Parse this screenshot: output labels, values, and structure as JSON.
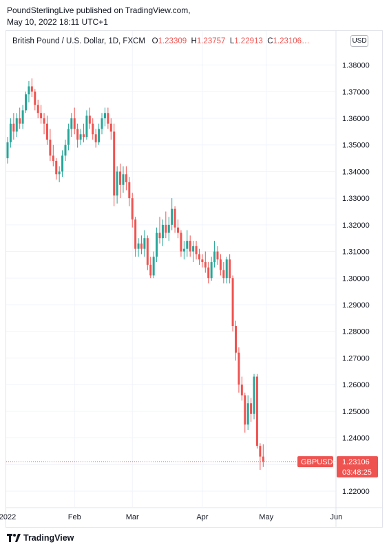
{
  "publisher_line": "PoundSterlingLive published on TradingView.com,",
  "date_line": "May 10, 2022 18:11 UTC+1",
  "legend": {
    "symbol": "British Pound / U.S. Dollar, 1D, FXCM",
    "o_label": "O",
    "o_value": "1.23309",
    "h_label": "H",
    "h_value": "1.23757",
    "l_label": "L",
    "l_value": "1.22913",
    "c_label": "C",
    "c_value": "1.23106…"
  },
  "currency_button": "USD",
  "price_tag": {
    "symbol": "GBPUSD",
    "price": "1.23106",
    "countdown": "03:48:25"
  },
  "footer_brand": "TradingView",
  "colors": {
    "up": "#26a69a",
    "down": "#ef5350",
    "grid": "#f0f3fa",
    "border": "#e0e3eb"
  },
  "chart_data": {
    "type": "candlestick",
    "y_tick_labels": [
      "1.38000",
      "1.37000",
      "1.36000",
      "1.35000",
      "1.34000",
      "1.33000",
      "1.32000",
      "1.31000",
      "1.30000",
      "1.29000",
      "1.28000",
      "1.27000",
      "1.26000",
      "1.25000",
      "1.24000",
      "1.23000",
      "1.22000"
    ],
    "x_tick_labels": [
      "2022",
      "Feb",
      "Mar",
      "Apr",
      "May",
      "Jun"
    ],
    "x_tick_day_index": [
      0,
      22,
      41,
      64,
      85,
      108
    ],
    "ylim": [
      1.2138,
      1.3928
    ],
    "last_price": 1.23106,
    "candles": [
      [
        1.345,
        1.353,
        1.343,
        1.351
      ],
      [
        1.351,
        1.36,
        1.349,
        1.358
      ],
      [
        1.358,
        1.362,
        1.352,
        1.355
      ],
      [
        1.355,
        1.362,
        1.353,
        1.36
      ],
      [
        1.36,
        1.364,
        1.356,
        1.358
      ],
      [
        1.358,
        1.365,
        1.356,
        1.363
      ],
      [
        1.363,
        1.37,
        1.362,
        1.369
      ],
      [
        1.369,
        1.374,
        1.366,
        1.372
      ],
      [
        1.372,
        1.375,
        1.368,
        1.37
      ],
      [
        1.37,
        1.371,
        1.363,
        1.365
      ],
      [
        1.365,
        1.367,
        1.36,
        1.362
      ],
      [
        1.362,
        1.365,
        1.358,
        1.36
      ],
      [
        1.36,
        1.362,
        1.354,
        1.358
      ],
      [
        1.358,
        1.361,
        1.35,
        1.352
      ],
      [
        1.352,
        1.356,
        1.344,
        1.346
      ],
      [
        1.346,
        1.35,
        1.342,
        1.344
      ],
      [
        1.344,
        1.345,
        1.337,
        1.339
      ],
      [
        1.339,
        1.342,
        1.336,
        1.34
      ],
      [
        1.34,
        1.348,
        1.338,
        1.346
      ],
      [
        1.346,
        1.352,
        1.344,
        1.35
      ],
      [
        1.35,
        1.358,
        1.348,
        1.356
      ],
      [
        1.356,
        1.362,
        1.353,
        1.36
      ],
      [
        1.36,
        1.364,
        1.354,
        1.356
      ],
      [
        1.356,
        1.358,
        1.349,
        1.352
      ],
      [
        1.352,
        1.356,
        1.35,
        1.354
      ],
      [
        1.354,
        1.358,
        1.351,
        1.353
      ],
      [
        1.353,
        1.363,
        1.352,
        1.361
      ],
      [
        1.361,
        1.364,
        1.356,
        1.358
      ],
      [
        1.358,
        1.36,
        1.352,
        1.354
      ],
      [
        1.354,
        1.356,
        1.349,
        1.351
      ],
      [
        1.351,
        1.358,
        1.35,
        1.356
      ],
      [
        1.356,
        1.362,
        1.354,
        1.36
      ],
      [
        1.36,
        1.364,
        1.357,
        1.362
      ],
      [
        1.362,
        1.364,
        1.356,
        1.358
      ],
      [
        1.358,
        1.36,
        1.352,
        1.355
      ],
      [
        1.355,
        1.358,
        1.327,
        1.331
      ],
      [
        1.331,
        1.342,
        1.328,
        1.34
      ],
      [
        1.34,
        1.343,
        1.33,
        1.335
      ],
      [
        1.335,
        1.342,
        1.332,
        1.339
      ],
      [
        1.339,
        1.342,
        1.333,
        1.336
      ],
      [
        1.336,
        1.338,
        1.327,
        1.33
      ],
      [
        1.33,
        1.332,
        1.319,
        1.322
      ],
      [
        1.322,
        1.323,
        1.308,
        1.311
      ],
      [
        1.311,
        1.315,
        1.308,
        1.313
      ],
      [
        1.313,
        1.316,
        1.309,
        1.311
      ],
      [
        1.311,
        1.318,
        1.308,
        1.315
      ],
      [
        1.315,
        1.316,
        1.303,
        1.305
      ],
      [
        1.305,
        1.308,
        1.3,
        1.301
      ],
      [
        1.301,
        1.31,
        1.3,
        1.308
      ],
      [
        1.308,
        1.319,
        1.306,
        1.317
      ],
      [
        1.317,
        1.323,
        1.313,
        1.315
      ],
      [
        1.315,
        1.322,
        1.312,
        1.32
      ],
      [
        1.32,
        1.325,
        1.315,
        1.317
      ],
      [
        1.317,
        1.323,
        1.314,
        1.32
      ],
      [
        1.32,
        1.33,
        1.318,
        1.326
      ],
      [
        1.326,
        1.327,
        1.317,
        1.319
      ],
      [
        1.319,
        1.322,
        1.315,
        1.317
      ],
      [
        1.317,
        1.318,
        1.308,
        1.31
      ],
      [
        1.31,
        1.314,
        1.307,
        1.311
      ],
      [
        1.311,
        1.318,
        1.308,
        1.314
      ],
      [
        1.314,
        1.316,
        1.308,
        1.31
      ],
      [
        1.31,
        1.314,
        1.306,
        1.312
      ],
      [
        1.312,
        1.314,
        1.307,
        1.309
      ],
      [
        1.309,
        1.311,
        1.305,
        1.307
      ],
      [
        1.307,
        1.309,
        1.304,
        1.306
      ],
      [
        1.306,
        1.31,
        1.302,
        1.304
      ],
      [
        1.304,
        1.306,
        1.298,
        1.3
      ],
      [
        1.3,
        1.308,
        1.299,
        1.306
      ],
      [
        1.306,
        1.314,
        1.304,
        1.31
      ],
      [
        1.31,
        1.312,
        1.305,
        1.307
      ],
      [
        1.307,
        1.309,
        1.301,
        1.303
      ],
      [
        1.303,
        1.306,
        1.298,
        1.3
      ],
      [
        1.3,
        1.308,
        1.298,
        1.307
      ],
      [
        1.307,
        1.309,
        1.298,
        1.3
      ],
      [
        1.3,
        1.301,
        1.28,
        1.282
      ],
      [
        1.282,
        1.284,
        1.269,
        1.272
      ],
      [
        1.272,
        1.274,
        1.257,
        1.26
      ],
      [
        1.26,
        1.263,
        1.254,
        1.256
      ],
      [
        1.256,
        1.257,
        1.242,
        1.245
      ],
      [
        1.245,
        1.256,
        1.243,
        1.253
      ],
      [
        1.253,
        1.255,
        1.246,
        1.249
      ],
      [
        1.249,
        1.264,
        1.247,
        1.263
      ],
      [
        1.263,
        1.264,
        1.236,
        1.237
      ],
      [
        1.237,
        1.238,
        1.228,
        1.233
      ],
      [
        1.233,
        1.2376,
        1.2291,
        1.2311
      ]
    ]
  }
}
